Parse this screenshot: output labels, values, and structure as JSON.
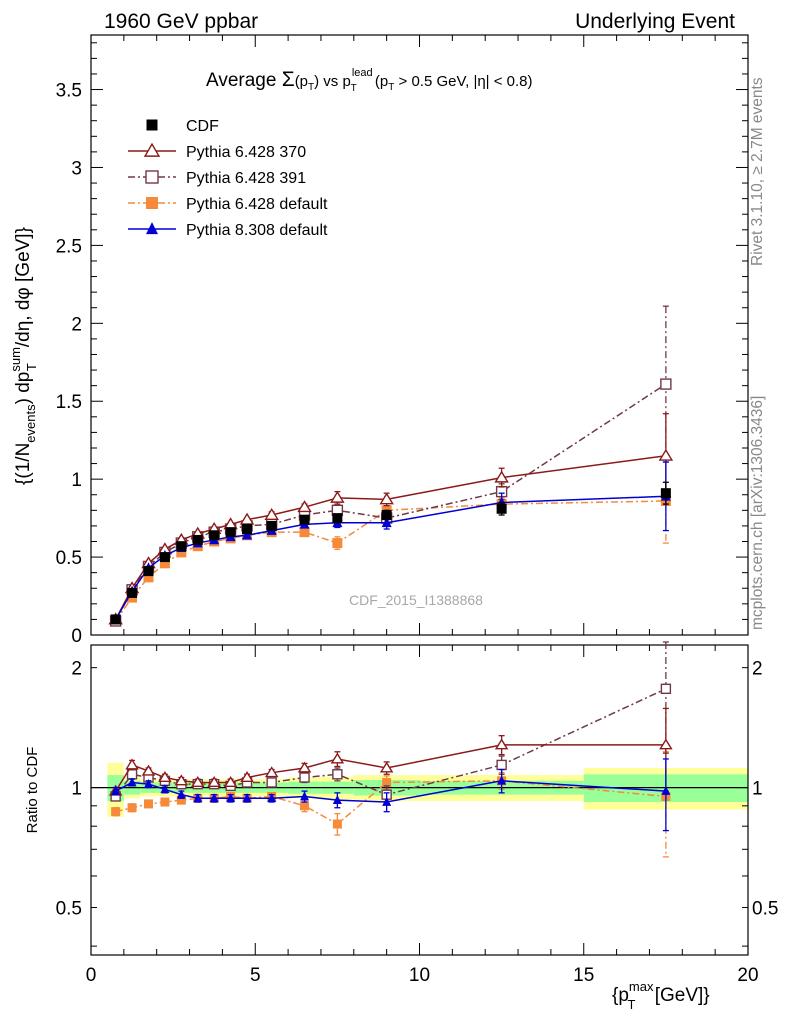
{
  "header": {
    "left": "1960 GeV ppbar",
    "right": "Underlying Event"
  },
  "title": {
    "prefix": "Average ",
    "sigma": "Σ",
    "pt_p": "(p",
    "pt_t": "T",
    "pt_close": ")",
    "vs": " vs p",
    "lead_sup": "lead",
    "lead_sub": "T",
    "cut_open": " (p",
    "cut_sub": "T",
    "cut_rest": " > 0.5 GeV, |η| < 0.8)"
  },
  "side_labels": {
    "rivet": "Rivet 3.1.10, ≥ 2.7M events",
    "mcplots": "mcplots.cern.ch [arXiv:1306.3436]"
  },
  "watermark": "CDF_2015_I1388868",
  "ylabel_main": {
    "a": "{(1/N",
    "a_sub": "events",
    "b": ") dp",
    "b_sup": "sum",
    "b_sub": "T",
    "c": "/dη, dφ [GeV]}"
  },
  "ylabel_ratio": "Ratio to CDF",
  "xlabel": {
    "a": "{p",
    "a_sup": "max",
    "a_sub": "T",
    "b": " [GeV]}"
  },
  "colors": {
    "cdf": "#000000",
    "p370": "#8b1a1a",
    "p391": "#6e3a4a",
    "p6def": "#f58a3a",
    "p8def": "#0000d4",
    "band_green": "#99ff99",
    "band_yellow": "#ffff99"
  },
  "chart_data": {
    "type": "scatter",
    "x_axis": {
      "range": [
        0,
        20
      ],
      "ticks": [
        "0",
        "5",
        "10",
        "15",
        "20"
      ]
    },
    "main": {
      "y_range": [
        0,
        3.85
      ],
      "ticks": [
        "0",
        "0.5",
        "1",
        "1.5",
        "2",
        "2.5",
        "3",
        "3.5"
      ]
    },
    "ratio": {
      "y_range": [
        0.38,
        2.28
      ],
      "ticks": [
        "0.5",
        "1",
        "2"
      ]
    },
    "x_bins": [
      [
        0.5,
        1.0
      ],
      [
        1.0,
        1.5
      ],
      [
        1.5,
        2.0
      ],
      [
        2.0,
        2.5
      ],
      [
        2.5,
        3.0
      ],
      [
        3.0,
        3.5
      ],
      [
        3.5,
        4.0
      ],
      [
        4.0,
        4.5
      ],
      [
        4.5,
        5.0
      ],
      [
        5.0,
        6.0
      ],
      [
        6.0,
        7.0
      ],
      [
        7.0,
        8.0
      ],
      [
        8.0,
        10.0
      ],
      [
        10.0,
        15.0
      ],
      [
        15.0,
        20.0
      ]
    ],
    "x": [
      0.75,
      1.25,
      1.75,
      2.25,
      2.75,
      3.25,
      3.75,
      4.25,
      4.75,
      5.5,
      6.5,
      7.5,
      9.0,
      12.5,
      17.5
    ],
    "series": [
      {
        "key": "cdf",
        "name": "CDF",
        "values": [
          0.1,
          0.27,
          0.41,
          0.5,
          0.57,
          0.61,
          0.64,
          0.66,
          0.68,
          0.7,
          0.74,
          0.75,
          0.77,
          0.81,
          0.91
        ],
        "errors": [
          0.01,
          0.01,
          0.01,
          0.01,
          0.01,
          0.01,
          0.01,
          0.01,
          0.01,
          0.01,
          0.02,
          0.02,
          0.03,
          0.04,
          0.07
        ],
        "ratio": [
          1,
          1,
          1,
          1,
          1,
          1,
          1,
          1,
          1,
          1,
          1,
          1,
          1,
          1,
          1
        ],
        "ratio_errors": [
          0,
          0,
          0,
          0,
          0,
          0,
          0,
          0,
          0,
          0,
          0,
          0,
          0,
          0,
          0
        ]
      },
      {
        "key": "p370",
        "name": "Pythia 6.428 370",
        "values": [
          0.1,
          0.3,
          0.46,
          0.55,
          0.61,
          0.65,
          0.68,
          0.71,
          0.74,
          0.77,
          0.82,
          0.88,
          0.87,
          1.01,
          1.15
        ],
        "errors": [
          0.01,
          0.01,
          0.01,
          0.01,
          0.01,
          0.01,
          0.01,
          0.01,
          0.01,
          0.02,
          0.02,
          0.04,
          0.04,
          0.06,
          0.27
        ],
        "ratio": [
          0.98,
          1.14,
          1.1,
          1.06,
          1.04,
          1.03,
          1.03,
          1.03,
          1.06,
          1.09,
          1.12,
          1.18,
          1.12,
          1.28,
          1.28
        ],
        "ratio_errors": [
          0.02,
          0.03,
          0.02,
          0.02,
          0.02,
          0.02,
          0.02,
          0.02,
          0.02,
          0.02,
          0.03,
          0.05,
          0.04,
          0.07,
          0.3
        ]
      },
      {
        "key": "p391",
        "name": "Pythia 6.428 391",
        "values": [
          0.09,
          0.29,
          0.44,
          0.53,
          0.59,
          0.63,
          0.66,
          0.68,
          0.7,
          0.71,
          0.77,
          0.8,
          0.75,
          0.92,
          1.61
        ],
        "errors": [
          0.01,
          0.01,
          0.01,
          0.01,
          0.01,
          0.01,
          0.01,
          0.01,
          0.01,
          0.01,
          0.02,
          0.03,
          0.04,
          0.05,
          0.5
        ],
        "ratio": [
          0.95,
          1.08,
          1.06,
          1.04,
          1.02,
          1.02,
          1.02,
          1.01,
          1.03,
          1.03,
          1.06,
          1.08,
          0.96,
          1.14,
          1.77
        ],
        "ratio_errors": [
          0.02,
          0.02,
          0.02,
          0.02,
          0.02,
          0.02,
          0.02,
          0.02,
          0.02,
          0.02,
          0.03,
          0.04,
          0.05,
          0.06,
          0.55
        ]
      },
      {
        "key": "p6def",
        "name": "Pythia 6.428 default",
        "values": [
          0.09,
          0.24,
          0.37,
          0.46,
          0.53,
          0.57,
          0.6,
          0.62,
          0.64,
          0.66,
          0.66,
          0.59,
          0.8,
          0.84,
          0.86
        ],
        "errors": [
          0.01,
          0.01,
          0.01,
          0.01,
          0.01,
          0.01,
          0.01,
          0.01,
          0.01,
          0.01,
          0.02,
          0.04,
          0.03,
          0.04,
          0.27
        ],
        "ratio": [
          0.87,
          0.89,
          0.91,
          0.92,
          0.93,
          0.94,
          0.94,
          0.95,
          0.94,
          0.95,
          0.9,
          0.81,
          1.03,
          1.04,
          0.95
        ],
        "ratio_errors": [
          0.02,
          0.02,
          0.01,
          0.01,
          0.01,
          0.01,
          0.01,
          0.01,
          0.01,
          0.02,
          0.03,
          0.05,
          0.04,
          0.05,
          0.28
        ]
      },
      {
        "key": "p8def",
        "name": "Pythia 8.308 default",
        "values": [
          0.1,
          0.28,
          0.43,
          0.51,
          0.56,
          0.59,
          0.61,
          0.63,
          0.64,
          0.67,
          0.71,
          0.72,
          0.72,
          0.85,
          0.89
        ],
        "errors": [
          0.01,
          0.01,
          0.01,
          0.01,
          0.01,
          0.01,
          0.01,
          0.01,
          0.01,
          0.01,
          0.02,
          0.03,
          0.04,
          0.06,
          0.22
        ],
        "ratio": [
          0.98,
          1.03,
          1.02,
          0.99,
          0.96,
          0.94,
          0.94,
          0.94,
          0.94,
          0.94,
          0.95,
          0.93,
          0.92,
          1.04,
          0.98
        ],
        "ratio_errors": [
          0.02,
          0.02,
          0.02,
          0.02,
          0.02,
          0.02,
          0.02,
          0.02,
          0.02,
          0.02,
          0.03,
          0.04,
          0.05,
          0.07,
          0.2
        ]
      }
    ],
    "ratio_bands": {
      "green": [
        0.075,
        0.04,
        0.03,
        0.03,
        0.03,
        0.03,
        0.03,
        0.03,
        0.03,
        0.03,
        0.035,
        0.035,
        0.045,
        0.04,
        0.08
      ],
      "yellow": [
        0.155,
        0.06,
        0.05,
        0.05,
        0.05,
        0.05,
        0.05,
        0.05,
        0.05,
        0.05,
        0.06,
        0.065,
        0.075,
        0.075,
        0.12
      ]
    }
  }
}
